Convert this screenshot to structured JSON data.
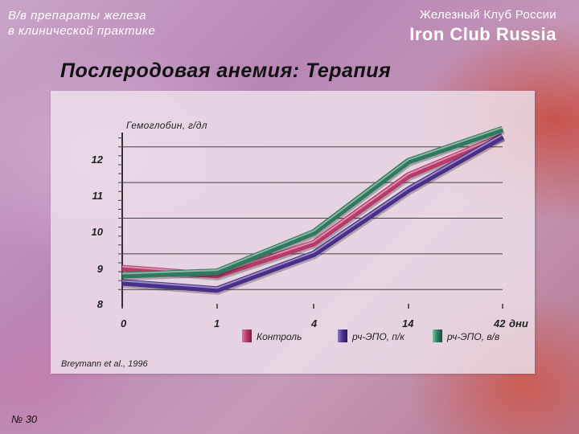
{
  "header": {
    "left_line1": "В/в препараты железа",
    "left_line2": "в клинической практике",
    "right_line1": "Железный Клуб России",
    "brand": "Iron Club Russia"
  },
  "title": "Послеродовая анемия: Терапия",
  "source": "Breymann et al., 1996",
  "slide_number": "№ 30",
  "colors": {
    "control": "#b83a6a",
    "sc_epo": "#4a2f8a",
    "iv_epo": "#2f7a5e"
  },
  "chart_data": {
    "type": "line",
    "ylabel": "Гемоглобин, г/дл",
    "xunit": "дни",
    "x": [
      "0",
      "1",
      "4",
      "14",
      "42"
    ],
    "y_ticks": [
      "12",
      "11",
      "10",
      "9",
      "8"
    ],
    "ylim": [
      7.6,
      12.4
    ],
    "grid": true,
    "legend_position": "bottom",
    "series": [
      {
        "name": "Контроль",
        "color": "#b83a6a",
        "values": [
          8.6,
          8.4,
          9.3,
          11.2,
          12.3
        ]
      },
      {
        "name": "рч-ЭПО, п/к",
        "color": "#4a2f8a",
        "values": [
          8.2,
          8.0,
          9.0,
          10.8,
          12.3
        ]
      },
      {
        "name": "рч-ЭПО, в/в",
        "color": "#2f7a5e",
        "values": [
          8.4,
          8.5,
          9.6,
          11.6,
          12.5
        ]
      }
    ]
  }
}
